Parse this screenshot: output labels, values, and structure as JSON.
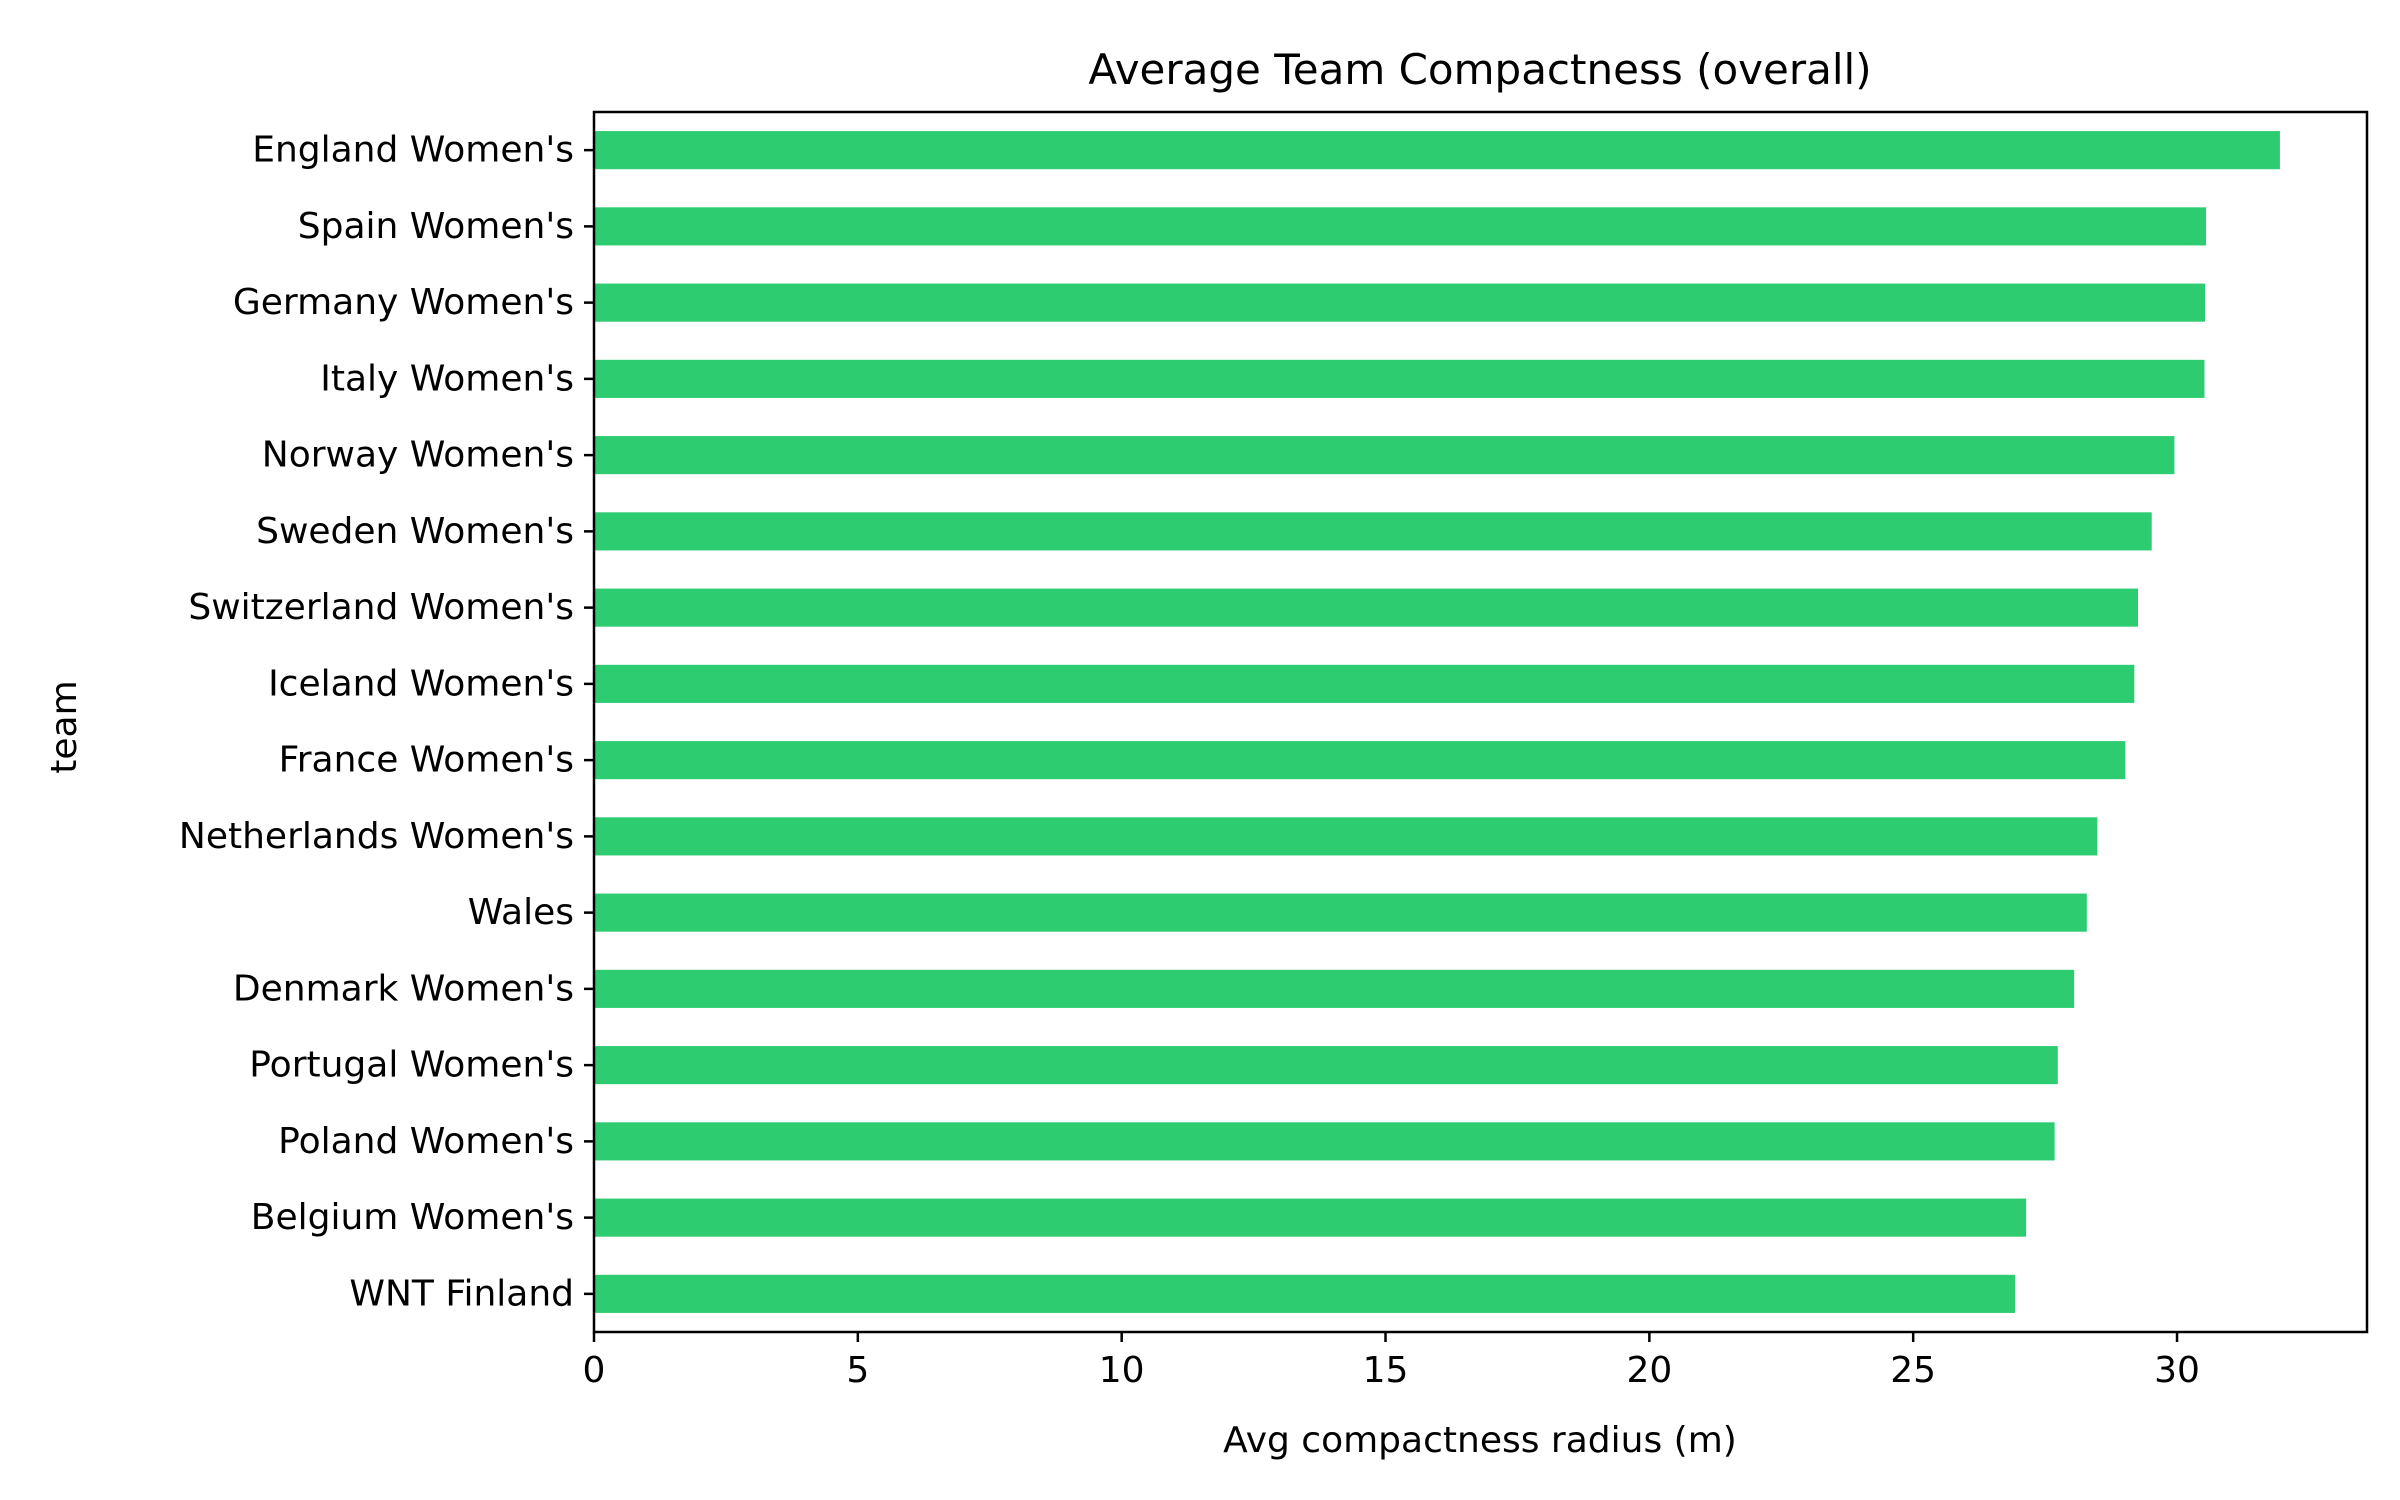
{
  "chart_data": {
    "type": "bar",
    "orientation": "horizontal",
    "title": "Average Team Compactness (overall)",
    "xlabel": "Avg compactness radius (m)",
    "ylabel": "team",
    "categories": [
      "England Women's",
      "Spain Women's",
      "Germany Women's",
      "Italy Women's",
      "Norway Women's",
      "Sweden Women's",
      "Switzerland Women's",
      "Iceland Women's",
      "France Women's",
      "Netherlands Women's",
      "Wales",
      "Denmark Women's",
      "Portugal Women's",
      "Poland Women's",
      "Belgium Women's",
      "WNT Finland"
    ],
    "values": [
      31.95,
      30.55,
      30.53,
      30.52,
      29.95,
      29.52,
      29.26,
      29.19,
      29.02,
      28.49,
      28.29,
      28.05,
      27.74,
      27.68,
      27.14,
      26.93
    ],
    "xlim": [
      0,
      33.6
    ],
    "xticks": [
      0,
      5,
      10,
      15,
      20,
      25,
      30
    ],
    "grid": false,
    "legend": false,
    "colors": {
      "bar": "#2ecc71",
      "axis": "#000000"
    }
  }
}
